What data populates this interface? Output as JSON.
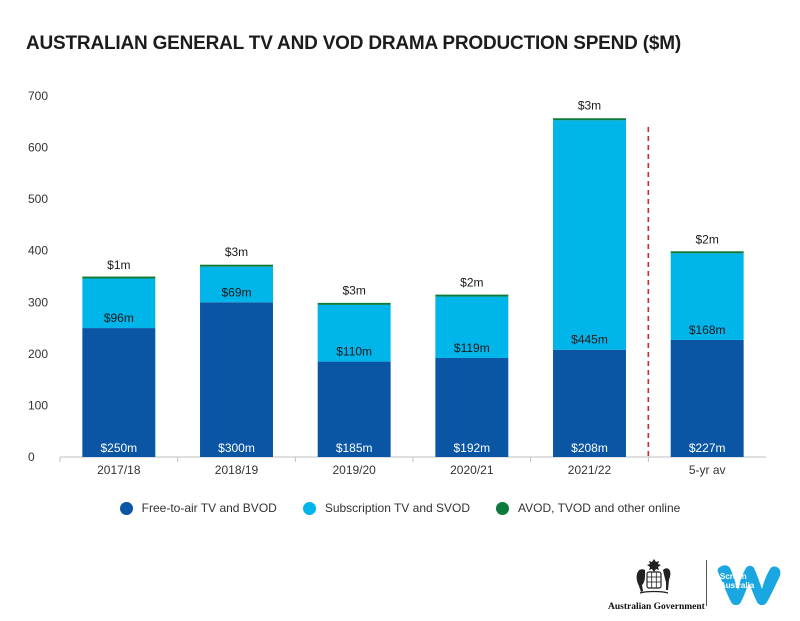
{
  "title": "AUSTRALIAN GENERAL TV AND VOD DRAMA PRODUCTION SPEND ($M)",
  "colors": {
    "fta": "#0a56a4",
    "sub": "#00b5e9",
    "avod": "#0b7a3a",
    "divider_line": "#d8232a"
  },
  "chart_data": {
    "type": "bar",
    "stacked": true,
    "categories": [
      "2017/18",
      "2018/19",
      "2019/20",
      "2020/21",
      "2021/22",
      "5-yr av"
    ],
    "series": [
      {
        "name": "Free-to-air TV and BVOD",
        "values": [
          250,
          300,
          185,
          192,
          208,
          227
        ],
        "labels": [
          "$250m",
          "$300m",
          "$185m",
          "$192m",
          "$208m",
          "$227m"
        ]
      },
      {
        "name": "Subscription TV and SVOD",
        "values": [
          96,
          69,
          110,
          119,
          445,
          168
        ],
        "labels": [
          "$96m",
          "$69m",
          "$110m",
          "$119m",
          "$445m",
          "$168m"
        ]
      },
      {
        "name": "AVOD, TVOD and other online",
        "values": [
          1,
          3,
          3,
          2,
          3,
          2
        ],
        "labels": [
          "$1m",
          "$3m",
          "$3m",
          "$2m",
          "$3m",
          "$2m"
        ]
      }
    ],
    "ylim": [
      0,
      700
    ],
    "yticks": [
      "0",
      "100",
      "200",
      "300",
      "400",
      "500",
      "600",
      "700"
    ],
    "grid": false,
    "divider_after_category": "2021/22",
    "legend_position": "bottom"
  },
  "legend": {
    "items": [
      {
        "label": "Free-to-air TV and BVOD",
        "color": "#0a56a4"
      },
      {
        "label": "Subscription TV and SVOD",
        "color": "#00b5e9"
      },
      {
        "label": "AVOD, TVOD and other online",
        "color": "#0b7a3a"
      }
    ]
  },
  "logos": {
    "gov_text": "Australian Government",
    "screen_australia_text": "Screen Australia",
    "icons": [
      "commonwealth-crest-icon",
      "screen-australia-logo-icon"
    ]
  }
}
